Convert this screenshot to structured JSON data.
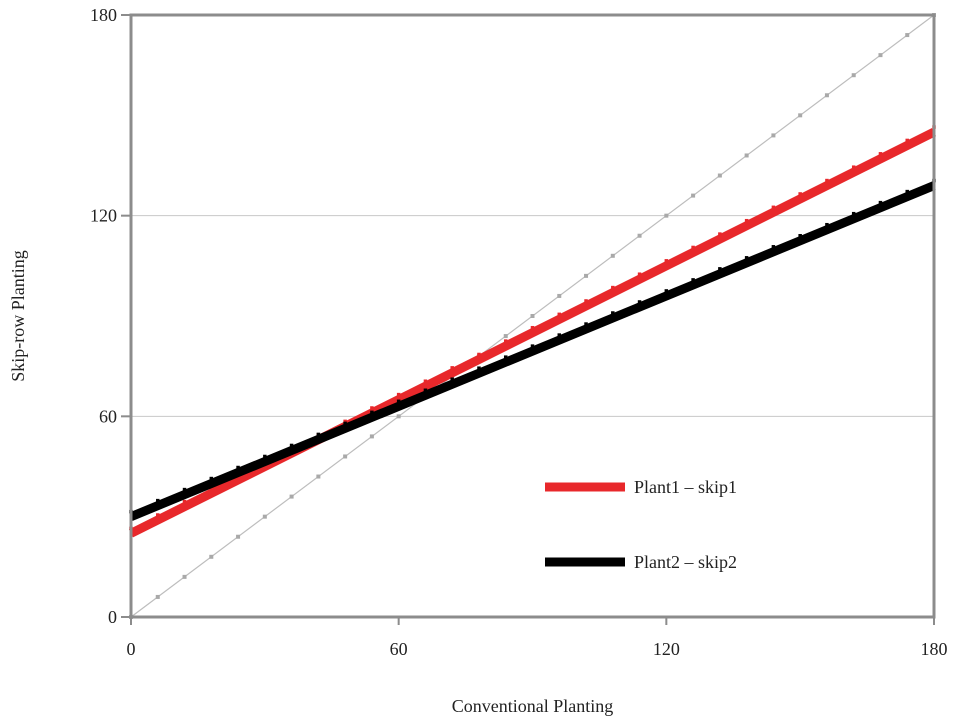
{
  "chart_data": {
    "type": "line",
    "title": "",
    "xlabel": "Conventional Planting",
    "ylabel": "Skip-row Planting",
    "xlim": [
      0,
      180
    ],
    "ylim": [
      0,
      180
    ],
    "xticks": [
      "0",
      "60",
      "120",
      "180"
    ],
    "yticks": [
      "0",
      "60",
      "120",
      "180"
    ],
    "grid": "horizontal",
    "legend_position": "lower-right",
    "series": [
      {
        "name": "Plant1 – skip1",
        "color": "#e8282b",
        "x": [
          0,
          180
        ],
        "y": [
          25,
          145
        ]
      },
      {
        "name": "Plant2 – skip2",
        "color": "#000000",
        "x": [
          0,
          180
        ],
        "y": [
          30,
          129
        ]
      },
      {
        "name": "",
        "color": "#bdbdbd",
        "x": [
          0,
          180
        ],
        "y": [
          0,
          180
        ]
      }
    ]
  }
}
